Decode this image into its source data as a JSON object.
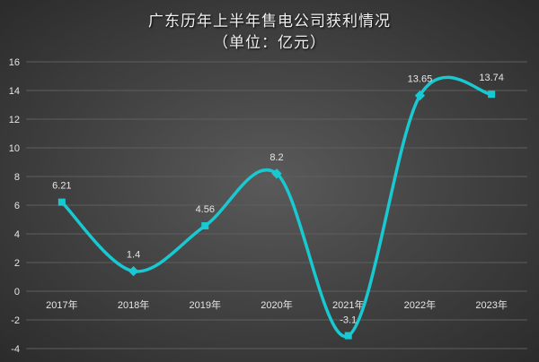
{
  "chart_data": {
    "type": "line",
    "title": "广东历年上半年售电公司获利情况",
    "subtitle": "（单位：亿元）",
    "categories": [
      "2017年",
      "2018年",
      "2019年",
      "2020年",
      "2021年",
      "2022年",
      "2023年"
    ],
    "series": [
      {
        "values": [
          6.21,
          1.4,
          4.56,
          8.2,
          -3.1,
          13.65,
          13.74
        ]
      }
    ],
    "data_labels": [
      "6.21",
      "1.4",
      "4.56",
      "8.2",
      "-3.1",
      "13.65",
      "13.74"
    ],
    "ylim": [
      -4,
      16
    ],
    "yticks": [
      -4,
      -2,
      0,
      2,
      4,
      6,
      8,
      10,
      12,
      14,
      16
    ],
    "grid": true,
    "smooth": true,
    "colors": {
      "line": "#19c9d2",
      "grid": "#5e5e5e",
      "text": "#e6e6e6"
    }
  }
}
